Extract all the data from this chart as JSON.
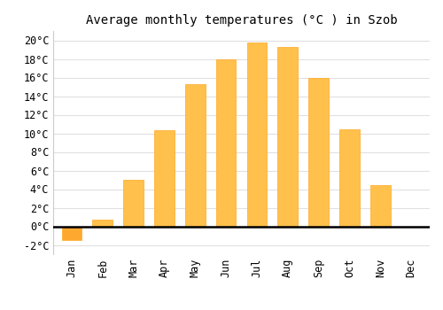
{
  "months": [
    "Jan",
    "Feb",
    "Mar",
    "Apr",
    "May",
    "Jun",
    "Jul",
    "Aug",
    "Sep",
    "Oct",
    "Nov",
    "Dec"
  ],
  "temperatures": [
    -1.5,
    0.7,
    5.0,
    10.3,
    15.3,
    18.0,
    19.8,
    19.3,
    16.0,
    10.4,
    4.4,
    0.0
  ],
  "bar_color_pos": "#FFC04C",
  "bar_color_neg": "#FFA830",
  "bar_edge_color": "#FFA820",
  "title": "Average monthly temperatures (°C ) in Szob",
  "ylim": [
    -3,
    21
  ],
  "yticks": [
    -2,
    0,
    2,
    4,
    6,
    8,
    10,
    12,
    14,
    16,
    18,
    20
  ],
  "grid_color": "#e0e0e0",
  "background_color": "#ffffff",
  "title_fontsize": 10,
  "tick_fontsize": 8.5,
  "font_family": "monospace"
}
